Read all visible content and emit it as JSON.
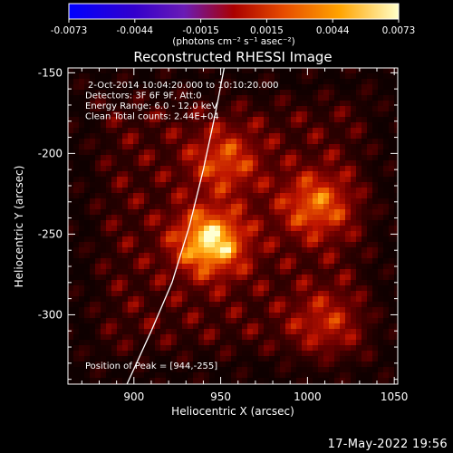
{
  "colorbar": {
    "ticks": [
      "-0.0073",
      "-0.0044",
      "-0.0015",
      "0.0015",
      "0.0044",
      "0.0073"
    ],
    "unit_label": "(photons cm⁻² s⁻¹ asec⁻²)"
  },
  "chart_data": {
    "type": "heatmap",
    "title": "Reconstructed RHESSI Image",
    "xlabel": "Heliocentric X (arcsec)",
    "ylabel": "Heliocentric Y (arcsec)",
    "xlim": [
      862,
      1052
    ],
    "ylim": [
      -343,
      -147
    ],
    "x_ticks": [
      "900",
      "950",
      "1000",
      "1050"
    ],
    "y_ticks": [
      "-150",
      "-200",
      "-250",
      "-300"
    ],
    "x_tick_values": [
      900,
      950,
      1000,
      1050
    ],
    "y_tick_values": [
      -150,
      -200,
      -250,
      -300
    ],
    "colorbar_range": [
      -0.0073,
      0.0073
    ],
    "sources": [
      {
        "x": 944,
        "y": -255,
        "relative_intensity": 1.0
      },
      {
        "x": 1005,
        "y": -232,
        "relative_intensity": 0.6
      },
      {
        "x": 952,
        "y": -205,
        "relative_intensity": 0.5
      },
      {
        "x": 1010,
        "y": -305,
        "relative_intensity": 0.35
      }
    ],
    "annotations": [
      "2-Oct-2014 10:04:20.000 to 10:10:20.000",
      "Detectors: 3F 6F 9F, Att:0",
      "Energy Range: 6.0 - 12.0 keV",
      "Clean     Total counts: 2.44E+04"
    ],
    "peak_label": "Position of Peak = [944,-255]",
    "limb_curve": [
      [
        896,
        -343
      ],
      [
        910,
        -310
      ],
      [
        922,
        -280
      ],
      [
        932,
        -245
      ],
      [
        940,
        -210
      ],
      [
        947,
        -175
      ],
      [
        952,
        -147
      ]
    ]
  },
  "footer_date": "17-May-2022 19:56",
  "colors": {
    "background": "#000000",
    "limb": "#ffffff",
    "axis": "#ffffff"
  }
}
